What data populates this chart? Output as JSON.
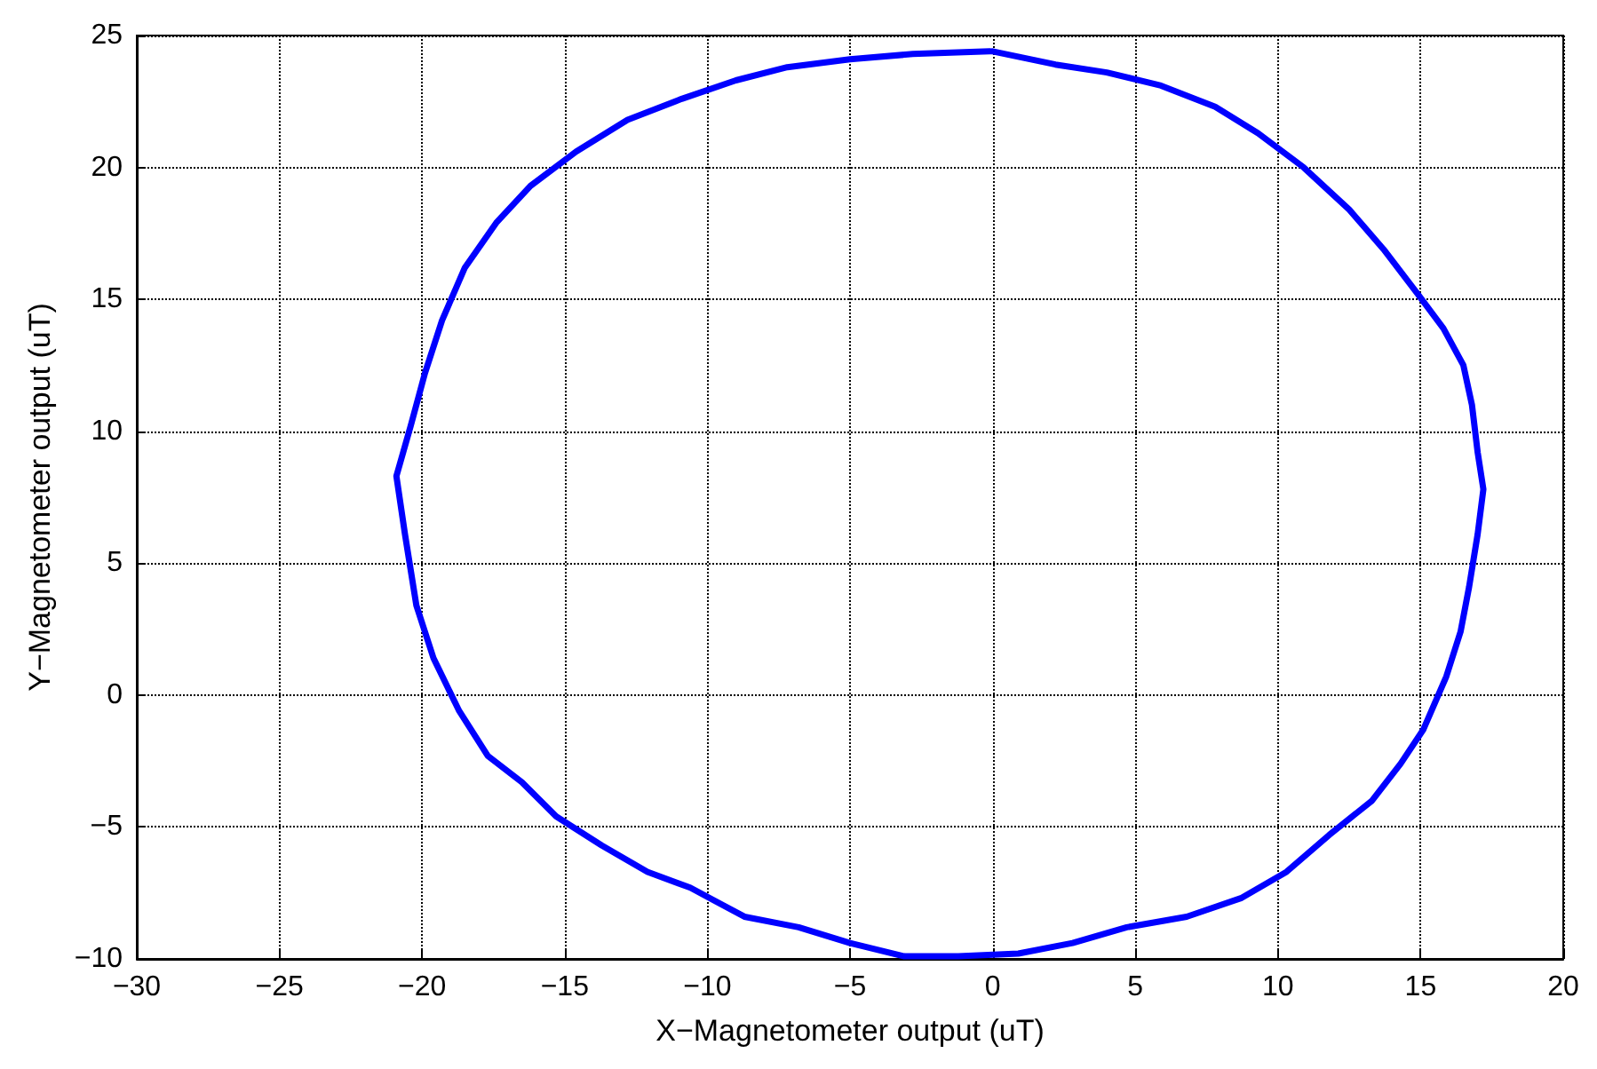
{
  "chart_data": {
    "type": "line",
    "xlabel": "X−Magnetometer output (uT)",
    "ylabel": "Y−Magnetometer output (uT)",
    "series": [
      {
        "color": "#0000ff",
        "x": [
          0,
          2.2,
          4.0,
          5.9,
          7.8,
          9.3,
          10.9,
          12.5,
          13.7,
          14.9,
          15.8,
          16.5,
          16.8,
          17.0,
          17.2,
          17.0,
          16.7,
          16.4,
          15.9,
          15.1,
          14.3,
          13.3,
          11.8,
          10.3,
          8.7,
          6.8,
          4.7,
          2.8,
          0.9,
          -1.2,
          -3.1,
          -5.0,
          -6.8,
          -8.7,
          -10.6,
          -12.1,
          -13.7,
          -15.3,
          -16.5,
          -17.7,
          -18.7,
          -19.6,
          -20.2,
          -20.6,
          -20.9,
          -20.4,
          -19.9,
          -19.3,
          -18.5,
          -17.4,
          -16.2,
          -14.6,
          -12.8,
          -10.9,
          -9.0,
          -7.2,
          -5.0,
          -2.8,
          -0.1
        ],
        "values": [
          24.4,
          23.9,
          23.6,
          23.1,
          22.3,
          21.3,
          20.0,
          18.4,
          16.9,
          15.2,
          13.9,
          12.5,
          11.0,
          9.2,
          7.8,
          6.1,
          4.1,
          2.4,
          0.7,
          -1.3,
          -2.6,
          -4.0,
          -5.3,
          -6.7,
          -7.7,
          -8.4,
          -8.8,
          -9.4,
          -9.8,
          -9.9,
          -9.9,
          -9.4,
          -8.8,
          -8.4,
          -7.3,
          -6.7,
          -5.7,
          -4.6,
          -3.3,
          -2.3,
          -0.6,
          1.4,
          3.4,
          6.1,
          8.3,
          10.2,
          12.2,
          14.2,
          16.2,
          17.9,
          19.3,
          20.6,
          21.8,
          22.6,
          23.3,
          23.8,
          24.1,
          24.3,
          24.4
        ]
      }
    ],
    "xlim": [
      -30,
      20
    ],
    "xticks": [
      -30,
      -25,
      -20,
      -15,
      -10,
      -5,
      0,
      5,
      10,
      15,
      20
    ],
    "ylim": [
      -10,
      25
    ],
    "yticks": [
      -10,
      -5,
      0,
      5,
      10,
      15,
      20,
      25
    ],
    "grid": true,
    "marker": "none",
    "line_style": "solid"
  }
}
